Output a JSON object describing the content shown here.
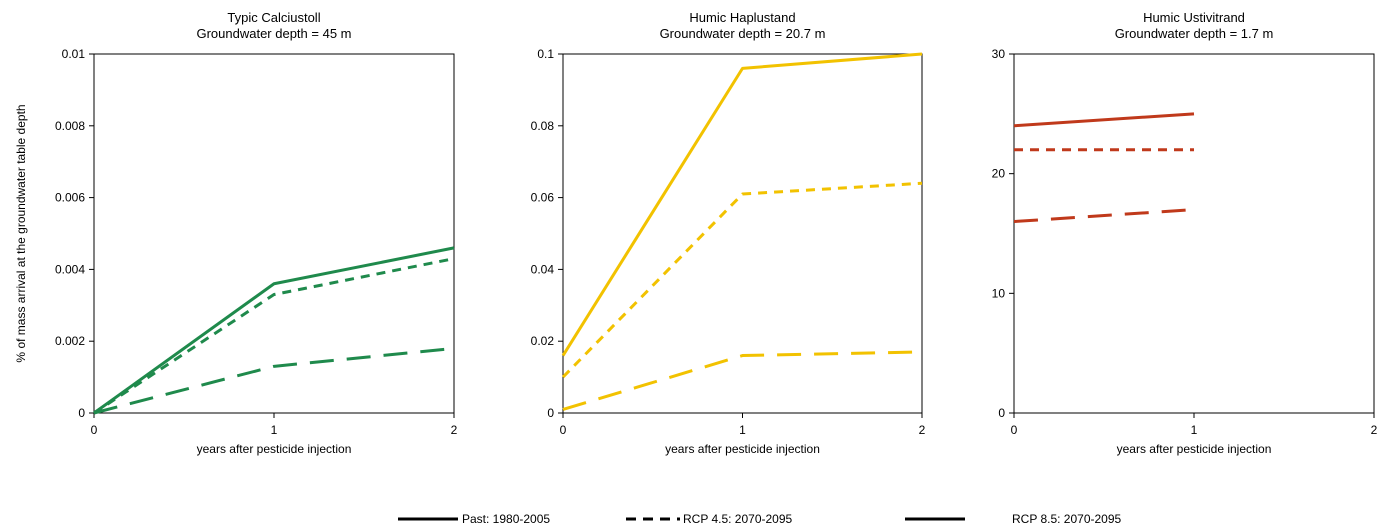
{
  "chart_data": [
    {
      "type": "line",
      "title": "Typic Calciustoll",
      "subtitle": "Groundwater depth = 45 m",
      "xlabel": "years after pesticide injection",
      "ylabel": "% of  mass arrival at the groundwater table depth",
      "xlim": [
        0,
        2
      ],
      "ylim": [
        0,
        0.01
      ],
      "x_ticks": [
        "0",
        "1",
        "2"
      ],
      "y_ticks": [
        "0",
        "0.002",
        "0.004",
        "0.006",
        "0.008",
        "0.01"
      ],
      "color": "#1f8a4c",
      "series": [
        {
          "name": "Past: 1980-2005",
          "style": "solid",
          "x": [
            0,
            1,
            2
          ],
          "y": [
            0,
            0.0036,
            0.0046
          ]
        },
        {
          "name": "RCP 4.5: 2070-2095",
          "style": "dashed",
          "x": [
            0,
            1,
            2
          ],
          "y": [
            0,
            0.0033,
            0.0043
          ]
        },
        {
          "name": "RCP 8.5: 2070-2095",
          "style": "longdash",
          "x": [
            0,
            1,
            2
          ],
          "y": [
            0,
            0.0013,
            0.0018
          ]
        }
      ]
    },
    {
      "type": "line",
      "title": "Humic Haplustand",
      "subtitle": "Groundwater depth = 20.7 m",
      "xlabel": "years after pesticide injection",
      "ylabel": "",
      "xlim": [
        0,
        2
      ],
      "ylim": [
        0,
        0.1
      ],
      "x_ticks": [
        "0",
        "1",
        "2"
      ],
      "y_ticks": [
        "0",
        "0.02",
        "0.04",
        "0.06",
        "0.08",
        "0.1"
      ],
      "color": "#f2c200",
      "series": [
        {
          "name": "Past: 1980-2005",
          "style": "solid",
          "x": [
            0,
            1,
            2
          ],
          "y": [
            0.016,
            0.096,
            0.1
          ]
        },
        {
          "name": "RCP 4.5: 2070-2095",
          "style": "dashed",
          "x": [
            0,
            1,
            2
          ],
          "y": [
            0.01,
            0.061,
            0.064
          ]
        },
        {
          "name": "RCP 8.5: 2070-2095",
          "style": "longdash",
          "x": [
            0,
            1,
            2
          ],
          "y": [
            0.001,
            0.016,
            0.017
          ]
        }
      ]
    },
    {
      "type": "line",
      "title": "Humic Ustivitrand",
      "subtitle": "Groundwater depth = 1.7 m",
      "xlabel": "years after pesticide injection",
      "ylabel": "",
      "xlim": [
        0,
        2
      ],
      "ylim": [
        0,
        30
      ],
      "x_ticks": [
        "0",
        "1",
        "2"
      ],
      "y_ticks": [
        "0",
        "10",
        "20",
        "30"
      ],
      "color": "#c0391b",
      "series": [
        {
          "name": "Past: 1980-2005",
          "style": "solid",
          "x": [
            0,
            1
          ],
          "y": [
            24,
            25
          ]
        },
        {
          "name": "RCP 4.5: 2070-2095",
          "style": "dashed",
          "x": [
            0,
            1
          ],
          "y": [
            22,
            22
          ]
        },
        {
          "name": "RCP 8.5: 2070-2095",
          "style": "longdash",
          "x": [
            0,
            1
          ],
          "y": [
            16,
            17
          ]
        }
      ]
    }
  ],
  "legend": [
    {
      "label": "Past: 1980-2005",
      "style": "solid"
    },
    {
      "label": "RCP 4.5: 2070-2095",
      "style": "dashed"
    },
    {
      "label": "RCP 8.5: 2070-2095",
      "style": "longdash"
    }
  ]
}
